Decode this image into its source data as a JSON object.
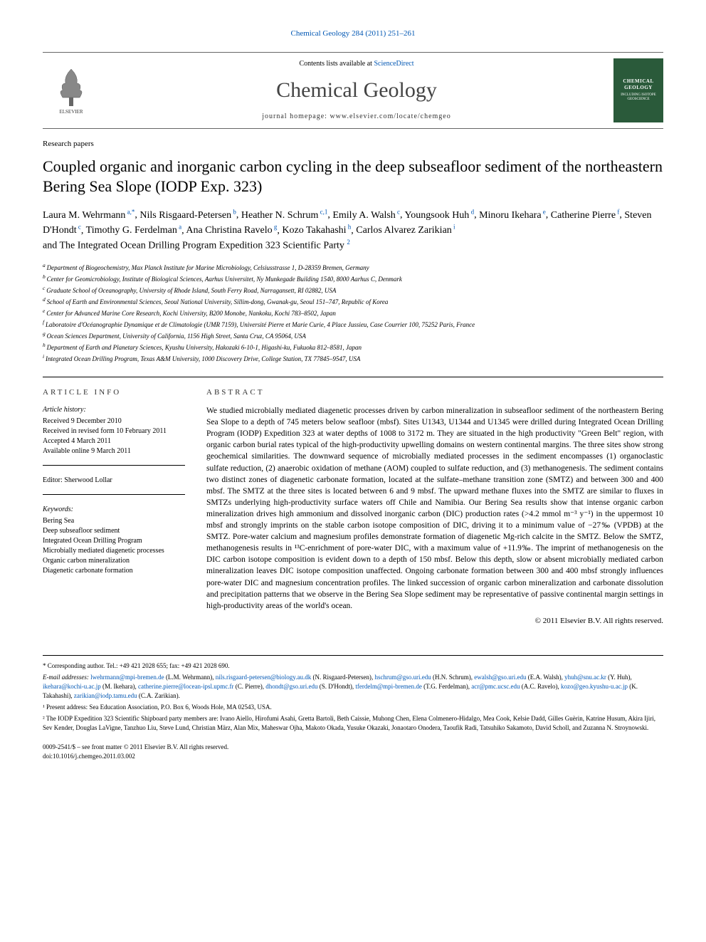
{
  "topRef": {
    "journal": "Chemical Geology",
    "issue": "284 (2011) 251–261"
  },
  "header": {
    "contentsPrefix": "Contents lists available at ",
    "contentsLink": "ScienceDirect",
    "journalName": "Chemical Geology",
    "homepageLabel": "journal homepage: ",
    "homepageUrl": "www.elsevier.com/locate/chemgeo",
    "publisherLogoAlt": "ELSEVIER",
    "coverLogoText": "CHEMICAL GEOLOGY"
  },
  "articleType": "Research papers",
  "title": "Coupled organic and inorganic carbon cycling in the deep subseafloor sediment of the northeastern Bering Sea Slope (IODP Exp. 323)",
  "authors": [
    {
      "name": "Laura M. Wehrmann",
      "sup": "a,*"
    },
    {
      "name": "Nils Risgaard-Petersen",
      "sup": "b"
    },
    {
      "name": "Heather N. Schrum",
      "sup": "c,1"
    },
    {
      "name": "Emily A. Walsh",
      "sup": "c"
    },
    {
      "name": "Youngsook Huh",
      "sup": "d"
    },
    {
      "name": "Minoru Ikehara",
      "sup": "e"
    },
    {
      "name": "Catherine Pierre",
      "sup": "f"
    },
    {
      "name": "Steven D'Hondt",
      "sup": "c"
    },
    {
      "name": "Timothy G. Ferdelman",
      "sup": "a"
    },
    {
      "name": "Ana Christina Ravelo",
      "sup": "g"
    },
    {
      "name": "Kozo Takahashi",
      "sup": "h"
    },
    {
      "name": "Carlos Alvarez Zarikian",
      "sup": "i"
    }
  ],
  "groupAuthor": "and The Integrated Ocean Drilling Program Expedition 323 Scientific Party",
  "groupAuthorSup": "2",
  "affiliations": [
    {
      "key": "a",
      "text": "Department of Biogeochemistry, Max Planck Institute for Marine Microbiology, Celsiusstrasse 1, D-28359 Bremen, Germany"
    },
    {
      "key": "b",
      "text": "Center for Geomicrobiology, Institute of Biological Sciences, Aarhus Universitet, Ny Munkegade Building 1540, 8000 Aarhus C, Denmark"
    },
    {
      "key": "c",
      "text": "Graduate School of Oceanography, University of Rhode Island, South Ferry Road, Narragansett, RI 02882, USA"
    },
    {
      "key": "d",
      "text": "School of Earth and Environmental Sciences, Seoul National University, Sillim-dong, Gwanak-gu, Seoul 151–747, Republic of Korea"
    },
    {
      "key": "e",
      "text": "Center for Advanced Marine Core Research, Kochi University, B200 Monobe, Nankoku, Kochi 783–8502, Japan"
    },
    {
      "key": "f",
      "text": "Laboratoire d'Océanographie Dynamique et de Climatologie (UMR 7159), Université Pierre et Marie Curie, 4 Place Jussieu, Case Courrier 100, 75252 Paris, France"
    },
    {
      "key": "g",
      "text": "Ocean Sciences Department, University of California, 1156 High Street, Santa Cruz, CA 95064, USA"
    },
    {
      "key": "h",
      "text": "Department of Earth and Planetary Sciences, Kyushu University, Hakozaki 6-10-1, Higashi-ku, Fukuoka 812–8581, Japan"
    },
    {
      "key": "i",
      "text": "Integrated Ocean Drilling Program, Texas A&M University, 1000 Discovery Drive, College Station, TX 77845–9547, USA"
    }
  ],
  "articleInfo": {
    "heading": "ARTICLE INFO",
    "historyLabel": "Article history:",
    "history": [
      "Received 9 December 2010",
      "Received in revised form 10 February 2011",
      "Accepted 4 March 2011",
      "Available online 9 March 2011"
    ],
    "editorLabel": "Editor: ",
    "editor": "Sherwood Lollar",
    "keywordsLabel": "Keywords:",
    "keywords": [
      "Bering Sea",
      "Deep subseafloor sediment",
      "Integrated Ocean Drilling Program",
      "Microbially mediated diagenetic processes",
      "Organic carbon mineralization",
      "Diagenetic carbonate formation"
    ]
  },
  "abstract": {
    "heading": "ABSTRACT",
    "text": "We studied microbially mediated diagenetic processes driven by carbon mineralization in subseafloor sediment of the northeastern Bering Sea Slope to a depth of 745 meters below seafloor (mbsf). Sites U1343, U1344 and U1345 were drilled during Integrated Ocean Drilling Program (IODP) Expedition 323 at water depths of 1008 to 3172 m. They are situated in the high productivity \"Green Belt\" region, with organic carbon burial rates typical of the high-productivity upwelling domains on western continental margins. The three sites show strong geochemical similarities. The downward sequence of microbially mediated processes in the sediment encompasses (1) organoclastic sulfate reduction, (2) anaerobic oxidation of methane (AOM) coupled to sulfate reduction, and (3) methanogenesis. The sediment contains two distinct zones of diagenetic carbonate formation, located at the sulfate–methane transition zone (SMTZ) and between 300 and 400 mbsf. The SMTZ at the three sites is located between 6 and 9 mbsf. The upward methane fluxes into the SMTZ are similar to fluxes in SMTZs underlying high-productivity surface waters off Chile and Namibia. Our Bering Sea results show that intense organic carbon mineralization drives high ammonium and dissolved inorganic carbon (DIC) production rates (>4.2 mmol m⁻³ y⁻¹) in the uppermost 10 mbsf and strongly imprints on the stable carbon isotope composition of DIC, driving it to a minimum value of −27‰ (VPDB) at the SMTZ. Pore-water calcium and magnesium profiles demonstrate formation of diagenetic Mg-rich calcite in the SMTZ. Below the SMTZ, methanogenesis results in ¹³C-enrichment of pore-water DIC, with a maximum value of +11.9‰. The imprint of methanogenesis on the DIC carbon isotope composition is evident down to a depth of 150 mbsf. Below this depth, slow or absent microbially mediated carbon mineralization leaves DIC isotope composition unaffected. Ongoing carbonate formation between 300 and 400 mbsf strongly influences pore-water DIC and magnesium concentration profiles. The linked succession of organic carbon mineralization and carbonate dissolution and precipitation patterns that we observe in the Bering Sea Slope sediment may be representative of passive continental margin settings in high-productivity areas of the world's ocean.",
    "copyright": "© 2011 Elsevier B.V. All rights reserved."
  },
  "footnotes": {
    "corresponding": "* Corresponding author. Tel.: +49 421 2028 655; fax: +49 421 2028 690.",
    "emailLabel": "E-mail addresses: ",
    "emails": [
      {
        "addr": "lwehrmann@mpi-bremen.de",
        "who": "(L.M. Wehrmann)"
      },
      {
        "addr": "nils.risgaard-petersen@biology.au.dk",
        "who": "(N. Risgaard-Petersen)"
      },
      {
        "addr": "hschrum@gso.uri.edu",
        "who": "(H.N. Schrum)"
      },
      {
        "addr": "ewalsh@gso.uri.edu",
        "who": "(E.A. Walsh)"
      },
      {
        "addr": "yhuh@snu.ac.kr",
        "who": "(Y. Huh)"
      },
      {
        "addr": "ikehara@kochi-u.ac.jp",
        "who": "(M. Ikehara)"
      },
      {
        "addr": "catherine.pierre@locean-ipsl.upmc.fr",
        "who": "(C. Pierre)"
      },
      {
        "addr": "dhondt@gso.uri.edu",
        "who": "(S. D'Hondt)"
      },
      {
        "addr": "tferdelm@mpi-bremen.de",
        "who": "(T.G. Ferdelman)"
      },
      {
        "addr": "acr@pmc.ucsc.edu",
        "who": "(A.C. Ravelo)"
      },
      {
        "addr": "kozo@geo.kyushu-u.ac.jp",
        "who": "(K. Takahashi)"
      },
      {
        "addr": "zarikian@iodp.tamu.edu",
        "who": "(C.A. Zarikian)."
      }
    ],
    "note1": "¹ Present address: Sea Education Association, P.O. Box 6, Woods Hole, MA 02543, USA.",
    "note2": "² The IODP Expedition 323 Scientific Shipboard party members are: Ivano Aiello, Hirofumi Asahi, Gretta Bartoli, Beth Caissie, Muhong Chen, Elena Colmenero-Hidalgo, Mea Cook, Kelsie Dadd, Gilles Guèrin, Katrine Husum, Akira Ijiri, Sev Kender, Douglas LaVigne, Tanzhuo Liu, Steve Lund, Christian März, Alan Mix, Maheswar Ojha, Makoto Okada, Yusuke Okazaki, Jonaotaro Onodera, Taoufik Radi, Tatsuhiko Sakamoto, David Scholl, and Zuzanna N. Stroynowski."
  },
  "bottom": {
    "issn": "0009-2541/$ – see front matter © 2011 Elsevier B.V. All rights reserved.",
    "doi": "doi:10.1016/j.chemgeo.2011.03.002"
  },
  "colors": {
    "link": "#0056b3",
    "textMain": "#000000",
    "rule": "#000000",
    "coverBg": "#2a5a3a"
  },
  "fonts": {
    "body": "Georgia, 'Times New Roman', serif",
    "title_pt": 22,
    "journal_pt": 30,
    "authors_pt": 14,
    "body_pt": 11,
    "small_pt": 9
  }
}
